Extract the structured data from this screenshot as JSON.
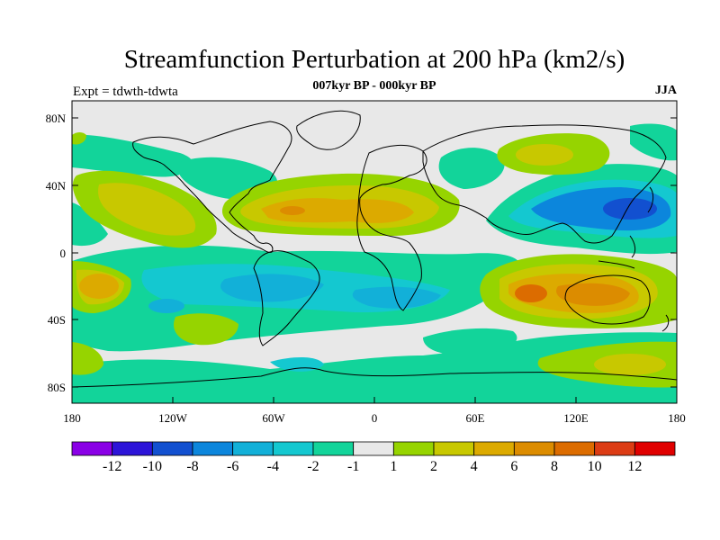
{
  "header": {
    "title": "Streamfunction Perturbation at 200 hPa (km2/s)",
    "subtitle": "007kyr BP - 000kyr BP",
    "left_label": "Expt = tdwth-tdwta",
    "right_label": "JJA"
  },
  "axes": {
    "lat_ticks": [
      "80N",
      "40N",
      "0",
      "40S",
      "80S"
    ],
    "lon_ticks": [
      "180",
      "120W",
      "60W",
      "0",
      "60E",
      "120E",
      "180"
    ]
  },
  "colorbar": {
    "colors": [
      "#8a00e6",
      "#2d14d8",
      "#1250d0",
      "#0c86dc",
      "#12b0d8",
      "#14c8d0",
      "#12d49a",
      "#e8e8e8",
      "#96d400",
      "#c8c800",
      "#dcaa00",
      "#dc8c00",
      "#dc6c00",
      "#dc3c14",
      "#e00000"
    ],
    "labels": [
      "-12",
      "-10",
      "-8",
      "-6",
      "-4",
      "-2",
      "-1",
      "1",
      "2",
      "4",
      "6",
      "8",
      "10",
      "12"
    ]
  },
  "field_colors": {
    "background": "#e8e8e8",
    "g1": "#12d49a",
    "g2": "#14c8d0",
    "g3": "#12b0d8",
    "g4": "#0c86dc",
    "g5": "#1250d0",
    "y1": "#96d400",
    "y2": "#c8c800",
    "y3": "#dcaa00",
    "y4": "#dc8c00",
    "y5": "#dc6c00"
  }
}
